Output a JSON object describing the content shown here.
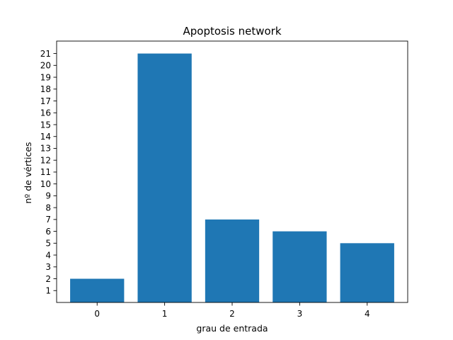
{
  "chart_data": {
    "type": "bar",
    "title": "Apoptosis network",
    "xlabel": "grau de entrada",
    "ylabel": "nº de vértices",
    "categories": [
      "0",
      "1",
      "2",
      "3",
      "4"
    ],
    "values": [
      2,
      21,
      7,
      6,
      5
    ],
    "yticks": [
      1,
      2,
      3,
      4,
      5,
      6,
      7,
      8,
      9,
      10,
      11,
      12,
      13,
      14,
      15,
      16,
      17,
      18,
      19,
      20,
      21
    ],
    "ylim": [
      0,
      22.05
    ],
    "bar_color": "#1f77b4",
    "grid": false
  }
}
